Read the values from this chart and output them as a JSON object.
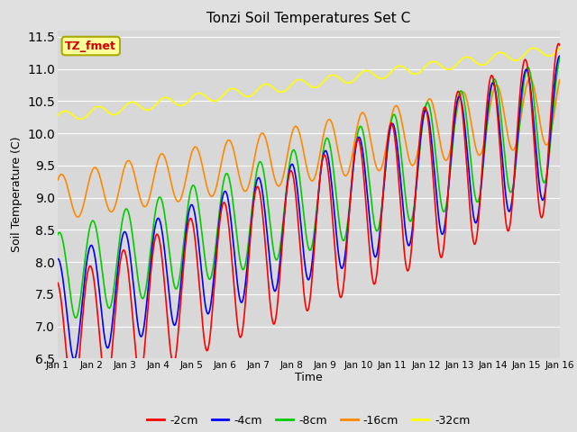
{
  "title": "Tonzi Soil Temperatures Set C",
  "xlabel": "Time",
  "ylabel": "Soil Temperature (C)",
  "ylim": [
    6.5,
    11.6
  ],
  "xlim": [
    0,
    15
  ],
  "xtick_labels": [
    "Jan 1",
    "Jan 2",
    "Jan 3",
    "Jan 4",
    "Jan 5",
    "Jan 6",
    "Jan 7",
    "Jan 8",
    "Jan 9",
    "Jan 10",
    "Jan 11",
    "Jan 12",
    "Jan 13",
    "Jan 14",
    "Jan 15",
    "Jan 16"
  ],
  "xtick_pos": [
    0,
    1,
    2,
    3,
    4,
    5,
    6,
    7,
    8,
    9,
    10,
    11,
    12,
    13,
    14,
    15
  ],
  "legend_labels": [
    "-2cm",
    "-4cm",
    "-8cm",
    "-16cm",
    "-32cm"
  ],
  "legend_colors": [
    "#ff0000",
    "#0000ff",
    "#00cc00",
    "#ff8800",
    "#ffff00"
  ],
  "line_width": 1.2,
  "bg_color": "#e0e0e0",
  "plot_bg_color": "#d8d8d8",
  "grid_color": "#ffffff",
  "annotation_text": "TZ_fmet",
  "annotation_bg": "#ffff99",
  "annotation_border": "#aaaa00",
  "annotation_fg": "#cc0000",
  "figsize": [
    6.4,
    4.8
  ],
  "dpi": 100
}
